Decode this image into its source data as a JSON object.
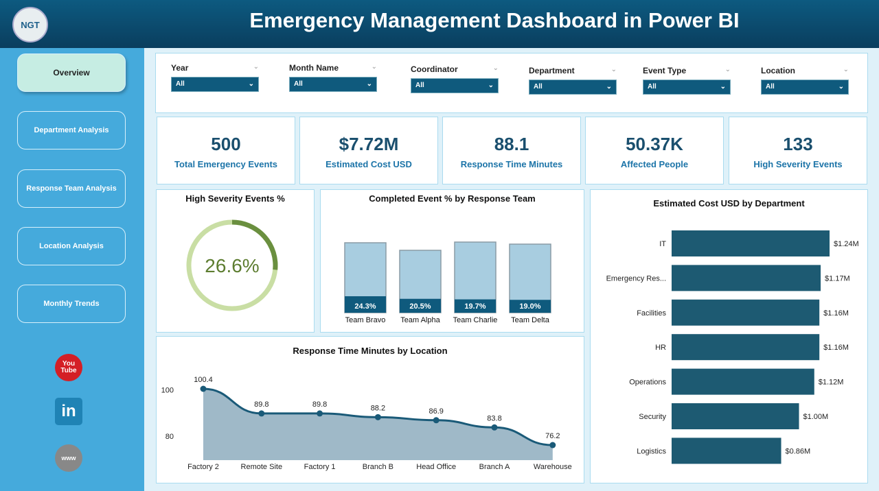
{
  "header": {
    "title": "Emergency Management Dashboard in Power BI",
    "logo_text": "NGT"
  },
  "sidebar": {
    "items": [
      {
        "label": "Overview",
        "active": true
      },
      {
        "label": "Department Analysis"
      },
      {
        "label": "Response Team Analysis"
      },
      {
        "label": "Location Analysis"
      },
      {
        "label": "Monthly Trends"
      }
    ],
    "social": [
      {
        "icon": "youtube-icon"
      },
      {
        "icon": "linkedin-icon"
      },
      {
        "icon": "website-globe-icon"
      }
    ]
  },
  "filters": [
    {
      "label": "Year",
      "value": "All"
    },
    {
      "label": "Month Name",
      "value": "All"
    },
    {
      "label": "Coordinator",
      "value": "All"
    },
    {
      "label": "Department",
      "value": "All"
    },
    {
      "label": "Event Type",
      "value": "All"
    },
    {
      "label": "Location",
      "value": "All"
    }
  ],
  "kpis": [
    {
      "value": "500",
      "label": "Total Emergency Events"
    },
    {
      "value": "$7.72M",
      "label": "Estimated Cost USD"
    },
    {
      "value": "88.1",
      "label": "Response Time Minutes"
    },
    {
      "value": "50.37K",
      "label": "Affected People"
    },
    {
      "value": "133",
      "label": "High Severity Events"
    }
  ],
  "chart_data": [
    {
      "type": "donut",
      "title": "High Severity Events %",
      "value": 26.6,
      "label": "26.6%",
      "colors": {
        "fill": "#6a8f3f",
        "track": "#c9dea4"
      }
    },
    {
      "type": "bar",
      "title": "Completed Event % by Response Team",
      "categories": [
        "Team Bravo",
        "Team Alpha",
        "Team Charlie",
        "Team Delta"
      ],
      "values": [
        24.3,
        20.5,
        19.7,
        19.0
      ],
      "labels": [
        "24.3%",
        "20.5%",
        "19.7%",
        "19.0%"
      ],
      "colors": {
        "completed": "#0f5a7d",
        "total": "#a8cde0"
      }
    },
    {
      "type": "bar",
      "orientation": "horizontal",
      "title": "Estimated Cost USD by Department",
      "categories": [
        "IT",
        "Emergency Res...",
        "Facilities",
        "HR",
        "Operations",
        "Security",
        "Logistics"
      ],
      "values": [
        1.24,
        1.17,
        1.16,
        1.16,
        1.12,
        1.0,
        0.86
      ],
      "labels": [
        "$1.24M",
        "$1.17M",
        "$1.16M",
        "$1.16M",
        "$1.12M",
        "$1.00M",
        "$0.86M"
      ],
      "color": "#1d5a72"
    },
    {
      "type": "area",
      "title": "Response Time Minutes by Location",
      "categories": [
        "Factory 2",
        "Remote Site",
        "Factory 1",
        "Branch B",
        "Head Office",
        "Branch A",
        "Warehouse"
      ],
      "values": [
        100.4,
        89.8,
        89.8,
        88.2,
        86.9,
        83.8,
        76.2
      ],
      "labels": [
        "100.4",
        "89.8",
        "89.8",
        "88.2",
        "86.9",
        "83.8",
        "76.2"
      ],
      "yticks": [
        "100",
        "80"
      ],
      "ylim": [
        69,
        105
      ],
      "colors": {
        "line": "#1a5a78",
        "fill": "#9fb9c8"
      }
    }
  ]
}
